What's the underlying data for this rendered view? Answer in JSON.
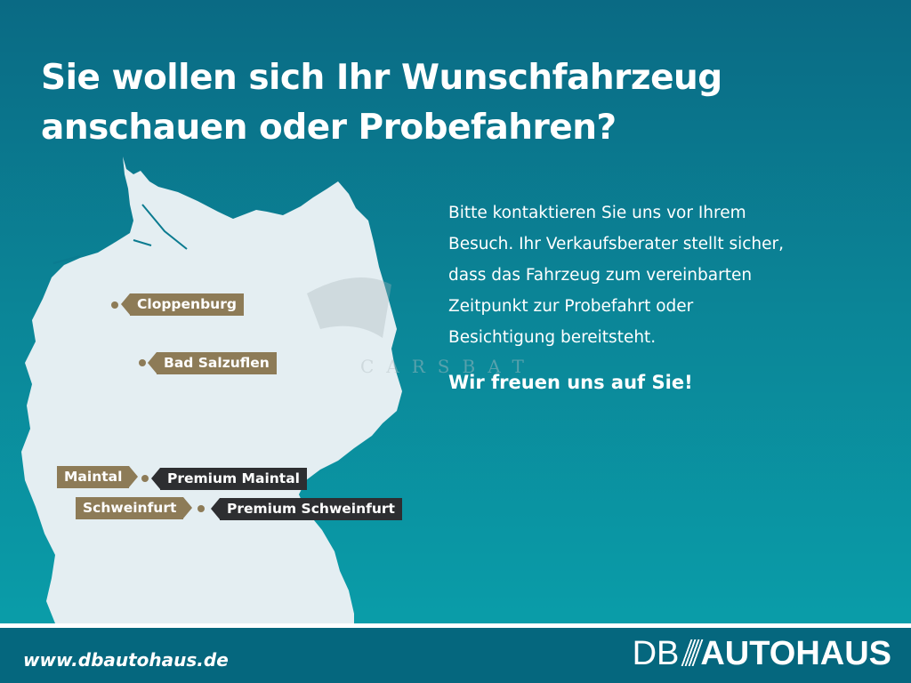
{
  "headline": {
    "line1": "Sie wollen sich Ihr Wunschfahrzeug",
    "line2": "anschauen oder Probefahren?"
  },
  "body": {
    "lines": [
      "Bitte kontaktieren Sie uns vor Ihrem",
      "Besuch. Ihr Verkaufsberater stellt sicher,",
      "dass das Fahrzeug zum vereinbarten",
      "Zeitpunkt zur Probefahrt oder",
      "Besichtigung bereitsteht."
    ],
    "closing": "Wir freuen uns auf Sie!"
  },
  "map": {
    "locations": [
      {
        "label": "Cloppenburg"
      },
      {
        "label": "Bad Salzuflen"
      },
      {
        "label": "Maintal"
      },
      {
        "label": "Premium Maintal"
      },
      {
        "label": "Schweinfurt"
      },
      {
        "label": "Premium Schweinfurt"
      }
    ]
  },
  "watermark": "CARSBAT",
  "footer": {
    "url": "www.dbautohaus.de",
    "logo_prefix": "DB",
    "logo_main": "AUTOHAUS"
  },
  "colors": {
    "background_top": "#0a6a84",
    "background_bottom": "#0aa1ac",
    "map_fill": "#e4eef2",
    "label_gold": "#8d7b57",
    "label_dark": "#2d2e31",
    "footer": "#05677e"
  }
}
